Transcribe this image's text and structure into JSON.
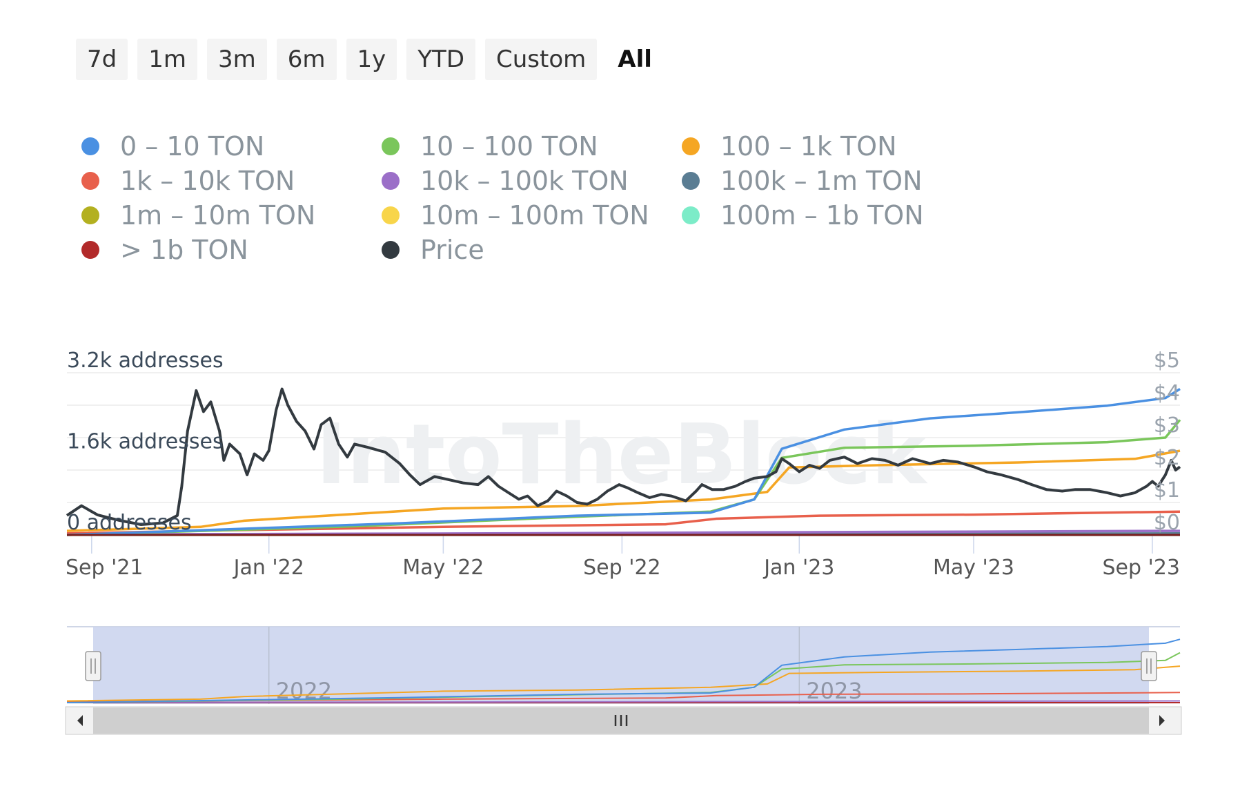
{
  "range_buttons": [
    "7d",
    "1m",
    "3m",
    "6m",
    "1y",
    "YTD",
    "Custom",
    "All"
  ],
  "active_range": "All",
  "watermark": "IntoTheBlock",
  "chart_data": {
    "type": "line",
    "left_axis": {
      "ticks": [
        0,
        1600,
        3200
      ],
      "labels": [
        "0 addresses",
        "1.6k addresses",
        "3.2k addresses"
      ],
      "range": [
        0,
        3200
      ]
    },
    "right_axis": {
      "labels": [
        "$0",
        "$1",
        "$2",
        "$3",
        "$4",
        "$5"
      ],
      "range": [
        0,
        5
      ]
    },
    "x_axis": {
      "range": [
        "2021-08-15",
        "2023-09-20"
      ],
      "tick_labels": [
        "Sep '21",
        "Jan '22",
        "May '22",
        "Sep '22",
        "Jan '23",
        "May '23",
        "Sep '23"
      ],
      "tick_dates": [
        "2021-09-01",
        "2022-01-01",
        "2022-05-01",
        "2022-09-01",
        "2023-01-01",
        "2023-05-01",
        "2023-09-01"
      ]
    },
    "series": [
      {
        "name": "0 – 10 TON",
        "color": "#4a90e2",
        "axis": "left",
        "points": [
          [
            "2021-08-15",
            0
          ],
          [
            "2022-04-01",
            230
          ],
          [
            "2022-08-01",
            380
          ],
          [
            "2022-11-01",
            440
          ],
          [
            "2022-12-01",
            700
          ],
          [
            "2022-12-20",
            1700
          ],
          [
            "2023-02-01",
            2080
          ],
          [
            "2023-04-01",
            2300
          ],
          [
            "2023-06-01",
            2420
          ],
          [
            "2023-08-01",
            2550
          ],
          [
            "2023-09-10",
            2700
          ],
          [
            "2023-09-20",
            2880
          ]
        ]
      },
      {
        "name": "10 – 100 TON",
        "color": "#7ac65b",
        "axis": "left",
        "points": [
          [
            "2021-08-15",
            0
          ],
          [
            "2022-03-01",
            170
          ],
          [
            "2022-08-01",
            360
          ],
          [
            "2022-11-01",
            460
          ],
          [
            "2022-12-01",
            700
          ],
          [
            "2022-12-20",
            1520
          ],
          [
            "2023-02-01",
            1720
          ],
          [
            "2023-05-01",
            1760
          ],
          [
            "2023-08-01",
            1830
          ],
          [
            "2023-09-10",
            1920
          ],
          [
            "2023-09-20",
            2270
          ]
        ]
      },
      {
        "name": "100 – 1k TON",
        "color": "#f5a623",
        "axis": "left",
        "points": [
          [
            "2021-08-15",
            80
          ],
          [
            "2021-11-15",
            160
          ],
          [
            "2021-12-15",
            280
          ],
          [
            "2022-05-01",
            520
          ],
          [
            "2022-08-01",
            570
          ],
          [
            "2022-11-01",
            700
          ],
          [
            "2022-12-10",
            850
          ],
          [
            "2022-12-25",
            1330
          ],
          [
            "2023-03-01",
            1380
          ],
          [
            "2023-06-01",
            1430
          ],
          [
            "2023-08-20",
            1500
          ],
          [
            "2023-09-20",
            1660
          ]
        ]
      },
      {
        "name": "1k – 10k TON",
        "color": "#e8604c",
        "axis": "left",
        "points": [
          [
            "2021-08-15",
            30
          ],
          [
            "2021-12-01",
            90
          ],
          [
            "2022-05-01",
            160
          ],
          [
            "2022-10-01",
            210
          ],
          [
            "2022-11-05",
            320
          ],
          [
            "2023-01-15",
            380
          ],
          [
            "2023-05-01",
            400
          ],
          [
            "2023-09-20",
            460
          ]
        ]
      },
      {
        "name": "10k – 100k TON",
        "color": "#9b6fc8",
        "axis": "left",
        "points": [
          [
            "2021-08-15",
            10
          ],
          [
            "2022-06-01",
            30
          ],
          [
            "2022-12-01",
            50
          ],
          [
            "2023-09-20",
            80
          ]
        ]
      },
      {
        "name": "100k – 1m TON",
        "color": "#5a7d93",
        "axis": "left",
        "points": [
          [
            "2021-08-15",
            5
          ],
          [
            "2023-09-20",
            30
          ]
        ]
      },
      {
        "name": "1m – 10m TON",
        "color": "#b3b020",
        "axis": "left",
        "points": [
          [
            "2021-08-15",
            3
          ],
          [
            "2023-09-20",
            10
          ]
        ]
      },
      {
        "name": "10m – 100m TON",
        "color": "#f8d54a",
        "axis": "left",
        "points": [
          [
            "2021-08-15",
            2
          ],
          [
            "2023-09-20",
            5
          ]
        ]
      },
      {
        "name": "100m – 1b TON",
        "color": "#7cecc8",
        "axis": "left",
        "points": [
          [
            "2021-08-15",
            1
          ],
          [
            "2023-09-20",
            2
          ]
        ]
      },
      {
        "name": "> 1b TON",
        "color": "#b22a2a",
        "axis": "left",
        "points": [
          [
            "2021-08-15",
            1
          ],
          [
            "2023-09-20",
            1
          ]
        ]
      },
      {
        "name": "Price",
        "color": "#333a40",
        "axis": "right",
        "points": [
          [
            "2021-08-15",
            0.6
          ],
          [
            "2021-08-25",
            0.9
          ],
          [
            "2021-09-05",
            0.62
          ],
          [
            "2021-09-20",
            0.45
          ],
          [
            "2021-10-05",
            0.32
          ],
          [
            "2021-10-20",
            0.37
          ],
          [
            "2021-10-30",
            0.6
          ],
          [
            "2021-11-02",
            1.5
          ],
          [
            "2021-11-06",
            3.2
          ],
          [
            "2021-11-12",
            4.45
          ],
          [
            "2021-11-17",
            3.8
          ],
          [
            "2021-11-22",
            4.1
          ],
          [
            "2021-11-28",
            3.2
          ],
          [
            "2021-12-01",
            2.3
          ],
          [
            "2021-12-05",
            2.8
          ],
          [
            "2021-12-12",
            2.5
          ],
          [
            "2021-12-17",
            1.85
          ],
          [
            "2021-12-22",
            2.5
          ],
          [
            "2021-12-28",
            2.3
          ],
          [
            "2022-01-01",
            2.6
          ],
          [
            "2022-01-06",
            3.85
          ],
          [
            "2022-01-10",
            4.5
          ],
          [
            "2022-01-14",
            4.0
          ],
          [
            "2022-01-20",
            3.5
          ],
          [
            "2022-01-26",
            3.2
          ],
          [
            "2022-02-01",
            2.65
          ],
          [
            "2022-02-06",
            3.4
          ],
          [
            "2022-02-12",
            3.6
          ],
          [
            "2022-02-18",
            2.8
          ],
          [
            "2022-02-24",
            2.4
          ],
          [
            "2022-03-01",
            2.8
          ],
          [
            "2022-03-10",
            2.7
          ],
          [
            "2022-03-22",
            2.55
          ],
          [
            "2022-04-01",
            2.2
          ],
          [
            "2022-04-08",
            1.85
          ],
          [
            "2022-04-15",
            1.55
          ],
          [
            "2022-04-25",
            1.8
          ],
          [
            "2022-05-05",
            1.7
          ],
          [
            "2022-05-15",
            1.6
          ],
          [
            "2022-05-25",
            1.55
          ],
          [
            "2022-06-01",
            1.8
          ],
          [
            "2022-06-08",
            1.5
          ],
          [
            "2022-06-15",
            1.3
          ],
          [
            "2022-06-22",
            1.1
          ],
          [
            "2022-06-28",
            1.2
          ],
          [
            "2022-07-05",
            0.9
          ],
          [
            "2022-07-12",
            1.05
          ],
          [
            "2022-07-18",
            1.35
          ],
          [
            "2022-07-25",
            1.2
          ],
          [
            "2022-08-01",
            1.0
          ],
          [
            "2022-08-08",
            0.95
          ],
          [
            "2022-08-15",
            1.1
          ],
          [
            "2022-08-22",
            1.35
          ],
          [
            "2022-08-30",
            1.55
          ],
          [
            "2022-09-05",
            1.45
          ],
          [
            "2022-09-12",
            1.3
          ],
          [
            "2022-09-20",
            1.15
          ],
          [
            "2022-09-28",
            1.25
          ],
          [
            "2022-10-05",
            1.2
          ],
          [
            "2022-10-15",
            1.05
          ],
          [
            "2022-10-22",
            1.35
          ],
          [
            "2022-10-26",
            1.55
          ],
          [
            "2022-11-02",
            1.4
          ],
          [
            "2022-11-10",
            1.4
          ],
          [
            "2022-11-18",
            1.5
          ],
          [
            "2022-11-25",
            1.65
          ],
          [
            "2022-12-01",
            1.75
          ],
          [
            "2022-12-10",
            1.8
          ],
          [
            "2022-12-16",
            1.95
          ],
          [
            "2022-12-20",
            2.35
          ],
          [
            "2022-12-25",
            2.2
          ],
          [
            "2023-01-01",
            1.95
          ],
          [
            "2023-01-08",
            2.15
          ],
          [
            "2023-01-15",
            2.05
          ],
          [
            "2023-01-22",
            2.3
          ],
          [
            "2023-02-01",
            2.4
          ],
          [
            "2023-02-10",
            2.2
          ],
          [
            "2023-02-20",
            2.35
          ],
          [
            "2023-03-01",
            2.3
          ],
          [
            "2023-03-10",
            2.15
          ],
          [
            "2023-03-20",
            2.35
          ],
          [
            "2023-04-01",
            2.2
          ],
          [
            "2023-04-10",
            2.3
          ],
          [
            "2023-04-20",
            2.25
          ],
          [
            "2023-05-01",
            2.1
          ],
          [
            "2023-05-10",
            1.95
          ],
          [
            "2023-05-20",
            1.85
          ],
          [
            "2023-06-01",
            1.7
          ],
          [
            "2023-06-10",
            1.55
          ],
          [
            "2023-06-20",
            1.4
          ],
          [
            "2023-07-01",
            1.35
          ],
          [
            "2023-07-10",
            1.4
          ],
          [
            "2023-07-20",
            1.4
          ],
          [
            "2023-08-01",
            1.3
          ],
          [
            "2023-08-10",
            1.2
          ],
          [
            "2023-08-20",
            1.3
          ],
          [
            "2023-08-28",
            1.5
          ],
          [
            "2023-09-01",
            1.65
          ],
          [
            "2023-09-05",
            1.5
          ],
          [
            "2023-09-10",
            1.85
          ],
          [
            "2023-09-14",
            2.3
          ],
          [
            "2023-09-17",
            2.0
          ],
          [
            "2023-09-20",
            2.1
          ]
        ]
      }
    ],
    "navigator": {
      "tick_labels": [
        "2022",
        "2023"
      ],
      "tick_dates": [
        "2022-01-01",
        "2023-01-01"
      ],
      "range": [
        "2021-08-15",
        "2023-09-20"
      ]
    },
    "grid": true,
    "legend_position": "top"
  }
}
